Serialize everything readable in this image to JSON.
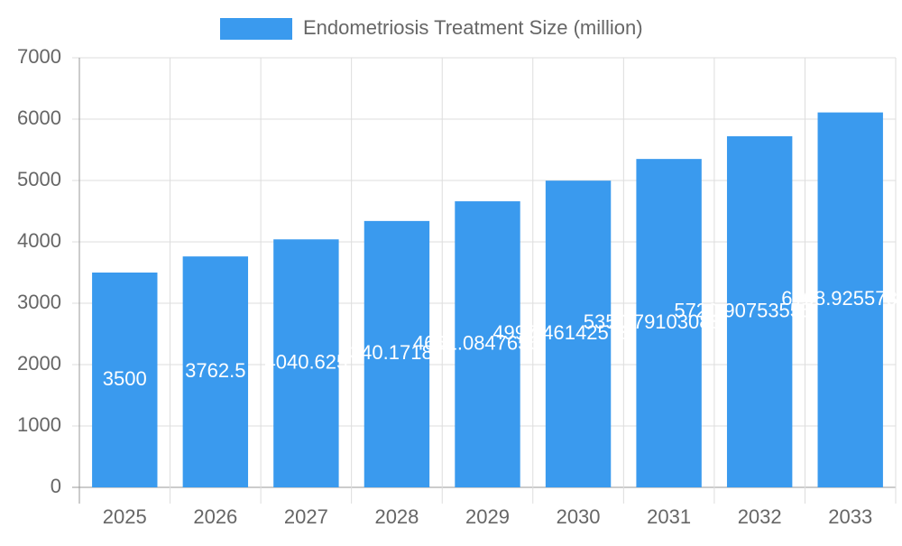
{
  "chart_data": {
    "type": "bar",
    "categories": [
      "2025",
      "2026",
      "2027",
      "2028",
      "2029",
      "2030",
      "2031",
      "2032",
      "2033"
    ],
    "series": [
      {
        "name": "Endometriosis Treatment Size (million)",
        "color": "#3a9aee",
        "values": [
          3500,
          3762.5,
          4040.625,
          4340.171875,
          4661.084765625,
          4997.46142578125,
          5350.79103088379,
          5720.90753555298,
          6108.92557844
        ]
      }
    ],
    "ylim": [
      0,
      7000
    ],
    "yticks": [
      0,
      1000,
      2000,
      3000,
      4000,
      5000,
      6000,
      7000
    ],
    "grid": true,
    "legend": "top"
  }
}
